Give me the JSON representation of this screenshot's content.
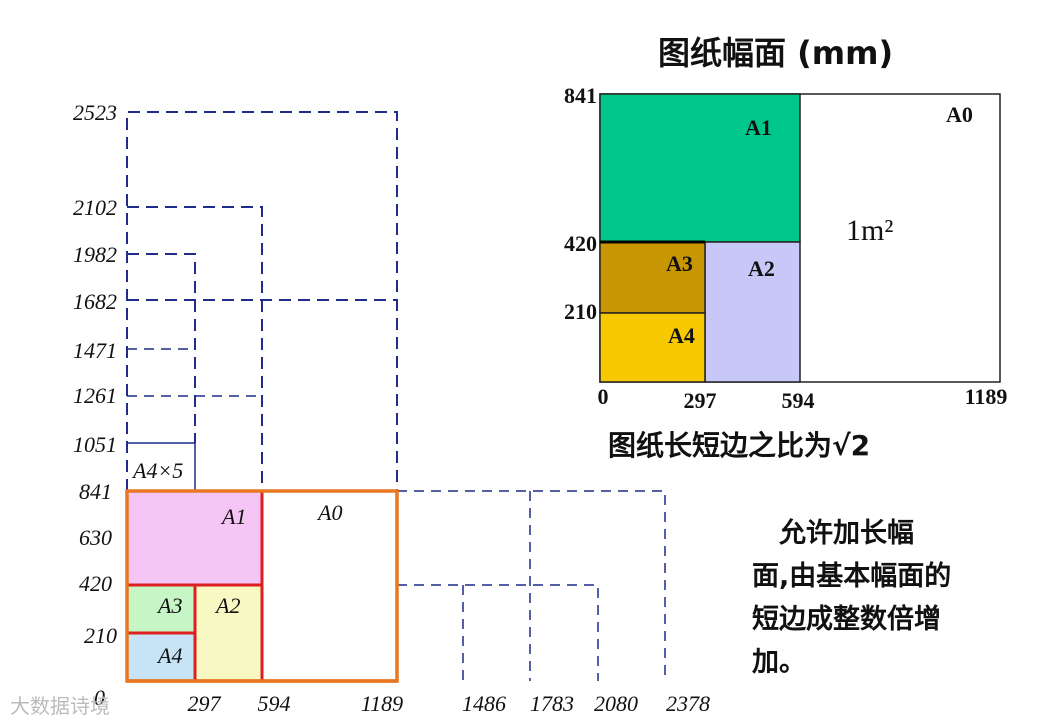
{
  "left_diagram": {
    "y_ticks": [
      "2523",
      "2102",
      "1982",
      "1682",
      "1471",
      "1261",
      "1051",
      "841",
      "630",
      "420",
      "210",
      "0"
    ],
    "x_ticks": [
      "297",
      "594",
      "1189",
      "1486",
      "1783",
      "2080",
      "2378"
    ],
    "labels": {
      "a1": "A1",
      "a0": "A0",
      "a2": "A2",
      "a3": "A3",
      "a4": "A4",
      "a4x5": "A4×5"
    },
    "colors": {
      "a1": "#f5c6f5",
      "a3": "#c6f5c6",
      "a4": "#c6e4f5",
      "a2": "#f8f8c2",
      "red": "#dd1f1f",
      "orange": "#e87722",
      "dash": "#1f2c8c"
    }
  },
  "right_diagram": {
    "title": "图纸幅面 (mm)",
    "y_ticks": [
      "841",
      "420",
      "210"
    ],
    "x_ticks": [
      "0",
      "297",
      "594",
      "1189"
    ],
    "labels": {
      "a0": "A0",
      "a1": "A1",
      "a2": "A2",
      "a3": "A3",
      "a4": "A4",
      "area": "1m²"
    },
    "colors": {
      "a1": "#00c88c",
      "a2": "#c8c8f8",
      "a3": "#c89600",
      "a4": "#f8c800"
    },
    "caption": "图纸长短边之比为√2"
  },
  "note": {
    "lines": [
      "　允许加长幅",
      "面,由基本幅面的",
      "短边成整数倍增",
      "加。"
    ]
  },
  "watermark": "大数据诗境"
}
